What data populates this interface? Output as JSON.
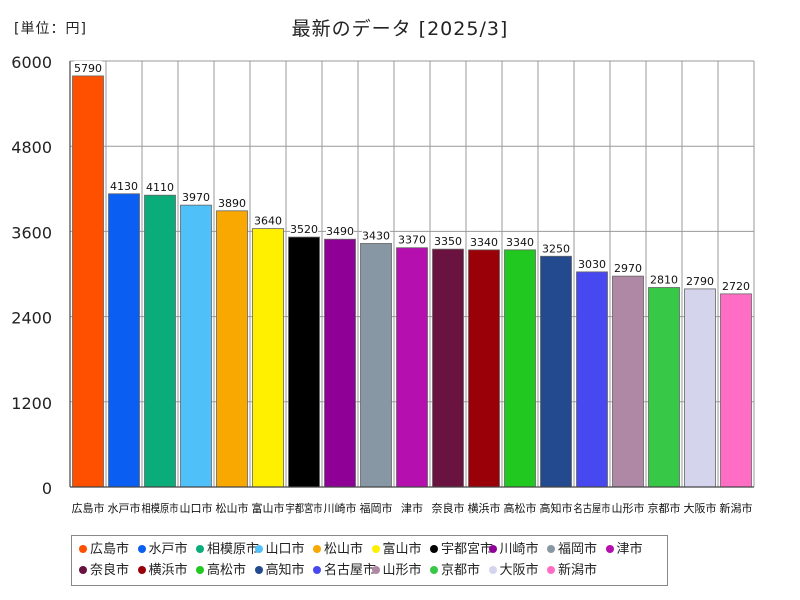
{
  "unit_label": "[単位：円]",
  "chart_data": {
    "type": "bar",
    "title": "最新のデータ [2025/3]",
    "ylim": [
      0,
      6000
    ],
    "yticks": [
      0,
      1200,
      2400,
      3600,
      4800,
      6000
    ],
    "grid": true,
    "legend_position": "bottom",
    "categories": [
      "広島市",
      "水戸市",
      "相模原市",
      "山口市",
      "松山市",
      "富山市",
      "宇都宮市",
      "川崎市",
      "福岡市",
      "津市",
      "奈良市",
      "横浜市",
      "高松市",
      "高知市",
      "名古屋市",
      "山形市",
      "京都市",
      "大阪市",
      "新潟市"
    ],
    "values": [
      5790,
      4130,
      4110,
      3970,
      3890,
      3640,
      3520,
      3490,
      3430,
      3370,
      3350,
      3340,
      3340,
      3250,
      3030,
      2970,
      2810,
      2790,
      2720
    ],
    "colors": [
      "#ff5000",
      "#0a5ff2",
      "#0aad7a",
      "#50c0f8",
      "#f8a800",
      "#fff000",
      "#000000",
      "#8e0096",
      "#8897a4",
      "#b50fb0",
      "#6a1240",
      "#9a0008",
      "#20c820",
      "#234a8e",
      "#4848f0",
      "#ae88a4",
      "#38c848",
      "#d4d4ec",
      "#ff6ec4"
    ],
    "x_labels": [
      "広島市",
      "水戸市",
      "相模原市",
      "山口市",
      "松山市",
      "富山市",
      "宇都宮市",
      "川崎市",
      "福岡市",
      "津市",
      "奈良市",
      "横浜市",
      "高松市",
      "高知市",
      "名古屋市",
      "山形市",
      "京都市",
      "大阪市",
      "新潟市"
    ]
  }
}
